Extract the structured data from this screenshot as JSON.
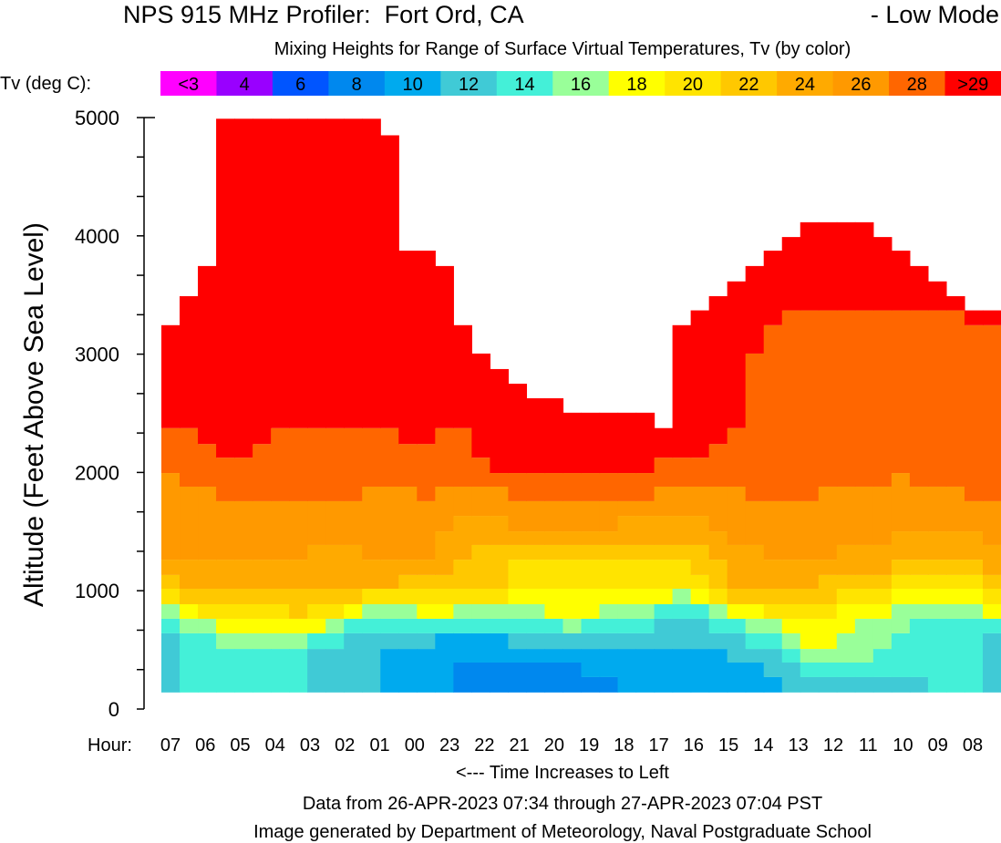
{
  "title": "NPS 915 MHz Profiler:  Fort Ord, CA",
  "mode": "- Low Mode",
  "subtitle": "Mixing Heights for Range of Surface Virtual Temperatures, Tv (by color)",
  "legend": {
    "label": "Tv (deg C):",
    "entries": [
      {
        "label": "<3",
        "color": "#ff00ff"
      },
      {
        "label": "4",
        "color": "#9900ff"
      },
      {
        "label": "6",
        "color": "#0055ff"
      },
      {
        "label": "8",
        "color": "#0088ee"
      },
      {
        "label": "10",
        "color": "#00aaee"
      },
      {
        "label": "12",
        "color": "#40cad6"
      },
      {
        "label": "14",
        "color": "#44f0d8"
      },
      {
        "label": "16",
        "color": "#99ff99"
      },
      {
        "label": "18",
        "color": "#ffff00"
      },
      {
        "label": "20",
        "color": "#ffe400"
      },
      {
        "label": "22",
        "color": "#ffc800"
      },
      {
        "label": "24",
        "color": "#ffaa00"
      },
      {
        "label": "26",
        "color": "#ff9900"
      },
      {
        "label": "28",
        "color": "#ff6600"
      },
      {
        "label": ">29",
        "color": "#ff0000"
      }
    ]
  },
  "footer": {
    "hour_label": "Hour:",
    "direction": "<--- Time Increases to Left",
    "data_range": "Data from 26-APR-2023 07:34 through 27-APR-2023 07:04 PST",
    "credit": "Image generated by Department of Meteorology, Naval Postgraduate School"
  },
  "chart_data": {
    "type": "area",
    "ylabel": "Altitude (Feet Above Sea Level)",
    "ylim": [
      0,
      5000
    ],
    "yticks": [
      0,
      1000,
      2000,
      3000,
      4000,
      5000
    ],
    "x_ticks": [
      "07",
      "06",
      "05",
      "04",
      "03",
      "02",
      "01",
      "00",
      "23",
      "22",
      "21",
      "20",
      "19",
      "18",
      "17",
      "16",
      "15",
      "14",
      "13",
      "12",
      "11",
      "10",
      "09",
      "08"
    ],
    "x_direction": "time increases to left",
    "base_ft": 140,
    "band_order": [
      "8",
      "10",
      "12",
      "14",
      "16",
      "18",
      "20",
      "22",
      "24",
      "26",
      "28",
      ">29"
    ],
    "columns_top_ft": [
      [
        140,
        140,
        640,
        763,
        886,
        886,
        1017,
        1133,
        1263,
        1995,
        2375,
        3245
      ],
      [
        140,
        140,
        140,
        640,
        763,
        886,
        886,
        1017,
        1263,
        1880,
        2375,
        3490
      ],
      [
        140,
        140,
        140,
        640,
        763,
        763,
        886,
        1017,
        1263,
        1880,
        2240,
        3745
      ],
      [
        140,
        140,
        140,
        508,
        640,
        763,
        886,
        1017,
        1263,
        1757,
        2125,
        4990
      ],
      [
        140,
        140,
        140,
        508,
        640,
        763,
        886,
        1017,
        1263,
        1757,
        2125,
        4990
      ],
      [
        140,
        140,
        140,
        508,
        640,
        763,
        886,
        1017,
        1263,
        1757,
        2240,
        4990
      ],
      [
        140,
        140,
        140,
        508,
        640,
        763,
        886,
        1017,
        1263,
        1757,
        2375,
        4990
      ],
      [
        140,
        140,
        140,
        508,
        640,
        763,
        763,
        1017,
        1263,
        1757,
        2375,
        4990
      ],
      [
        140,
        140,
        508,
        640,
        640,
        763,
        886,
        1017,
        1387,
        1757,
        2375,
        4990
      ],
      [
        140,
        140,
        508,
        640,
        763,
        763,
        886,
        1017,
        1387,
        1757,
        2375,
        4990
      ],
      [
        140,
        140,
        640,
        763,
        763,
        886,
        886,
        1017,
        1387,
        1757,
        2375,
        4990
      ],
      [
        140,
        140,
        640,
        763,
        886,
        886,
        1017,
        1017,
        1263,
        1880,
        2375,
        4990
      ],
      [
        140,
        508,
        640,
        763,
        886,
        886,
        1017,
        1017,
        1263,
        1880,
        2375,
        4850
      ],
      [
        140,
        508,
        640,
        763,
        886,
        886,
        1017,
        1133,
        1263,
        1880,
        2240,
        3875
      ],
      [
        140,
        508,
        640,
        763,
        763,
        886,
        1017,
        1133,
        1263,
        1757,
        2240,
        3875
      ],
      [
        140,
        640,
        640,
        763,
        763,
        886,
        1017,
        1133,
        1502,
        1880,
        2375,
        3745
      ],
      [
        393,
        640,
        640,
        763,
        886,
        886,
        1017,
        1263,
        1633,
        1880,
        2375,
        3245
      ],
      [
        393,
        640,
        640,
        763,
        886,
        886,
        1017,
        1387,
        1633,
        1880,
        2125,
        3005
      ],
      [
        393,
        640,
        640,
        763,
        886,
        886,
        1017,
        1387,
        1633,
        1880,
        1995,
        2874
      ],
      [
        393,
        508,
        640,
        763,
        886,
        1017,
        1263,
        1387,
        1502,
        1757,
        1995,
        2750
      ],
      [
        393,
        508,
        640,
        763,
        886,
        1017,
        1263,
        1387,
        1502,
        1757,
        1995,
        2627
      ],
      [
        393,
        508,
        640,
        763,
        763,
        1017,
        1263,
        1387,
        1502,
        1757,
        1995,
        2627
      ],
      [
        393,
        508,
        640,
        640,
        763,
        1017,
        1263,
        1387,
        1502,
        1757,
        1995,
        2505
      ],
      [
        270,
        508,
        640,
        763,
        763,
        1017,
        1263,
        1387,
        1502,
        1757,
        1995,
        2505
      ],
      [
        270,
        508,
        640,
        763,
        886,
        1017,
        1263,
        1387,
        1502,
        1757,
        1995,
        2505
      ],
      [
        140,
        508,
        640,
        763,
        886,
        1017,
        1263,
        1387,
        1633,
        1757,
        1995,
        2505
      ],
      [
        140,
        508,
        640,
        763,
        886,
        1017,
        1263,
        1387,
        1633,
        1757,
        1995,
        2505
      ],
      [
        140,
        508,
        763,
        886,
        886,
        1017,
        1263,
        1387,
        1633,
        1880,
        2125,
        2375
      ],
      [
        140,
        508,
        763,
        886,
        1017,
        1017,
        1263,
        1387,
        1633,
        1880,
        2125,
        3245
      ],
      [
        140,
        508,
        763,
        886,
        886,
        1017,
        1133,
        1387,
        1633,
        1880,
        2125,
        3370
      ],
      [
        140,
        508,
        640,
        763,
        886,
        886,
        1017,
        1263,
        1502,
        1880,
        2240,
        3490
      ],
      [
        140,
        393,
        640,
        763,
        763,
        886,
        886,
        1017,
        1387,
        1880,
        2375,
        3615
      ],
      [
        140,
        393,
        508,
        640,
        763,
        886,
        886,
        1017,
        1387,
        1757,
        3005,
        3745
      ],
      [
        140,
        270,
        508,
        640,
        763,
        763,
        886,
        1017,
        1263,
        1757,
        3245,
        3875
      ],
      [
        140,
        140,
        393,
        508,
        640,
        763,
        886,
        1017,
        1263,
        1757,
        3370,
        3990
      ],
      [
        140,
        140,
        270,
        393,
        508,
        763,
        886,
        1017,
        1263,
        1757,
        3370,
        4115
      ],
      [
        140,
        140,
        270,
        393,
        508,
        763,
        886,
        1133,
        1263,
        1880,
        3370,
        4115
      ],
      [
        140,
        140,
        270,
        393,
        640,
        886,
        1017,
        1133,
        1387,
        1880,
        3370,
        4115
      ],
      [
        140,
        140,
        270,
        393,
        763,
        886,
        1017,
        1133,
        1387,
        1880,
        3370,
        4115
      ],
      [
        140,
        140,
        270,
        508,
        763,
        886,
        1017,
        1133,
        1387,
        1880,
        3370,
        3990
      ],
      [
        140,
        140,
        270,
        640,
        886,
        1017,
        1133,
        1263,
        1502,
        1995,
        3370,
        3875
      ],
      [
        140,
        140,
        270,
        763,
        886,
        1017,
        1133,
        1263,
        1502,
        1880,
        3370,
        3745
      ],
      [
        140,
        140,
        140,
        763,
        886,
        1017,
        1133,
        1263,
        1502,
        1880,
        3370,
        3615
      ],
      [
        140,
        140,
        140,
        763,
        886,
        1017,
        1133,
        1263,
        1502,
        1880,
        3370,
        3490
      ],
      [
        140,
        140,
        140,
        763,
        886,
        1017,
        1133,
        1263,
        1502,
        1757,
        3245,
        3370
      ],
      [
        140,
        140,
        640,
        763,
        763,
        886,
        1017,
        1133,
        1387,
        1757,
        3245,
        3370
      ]
    ]
  }
}
